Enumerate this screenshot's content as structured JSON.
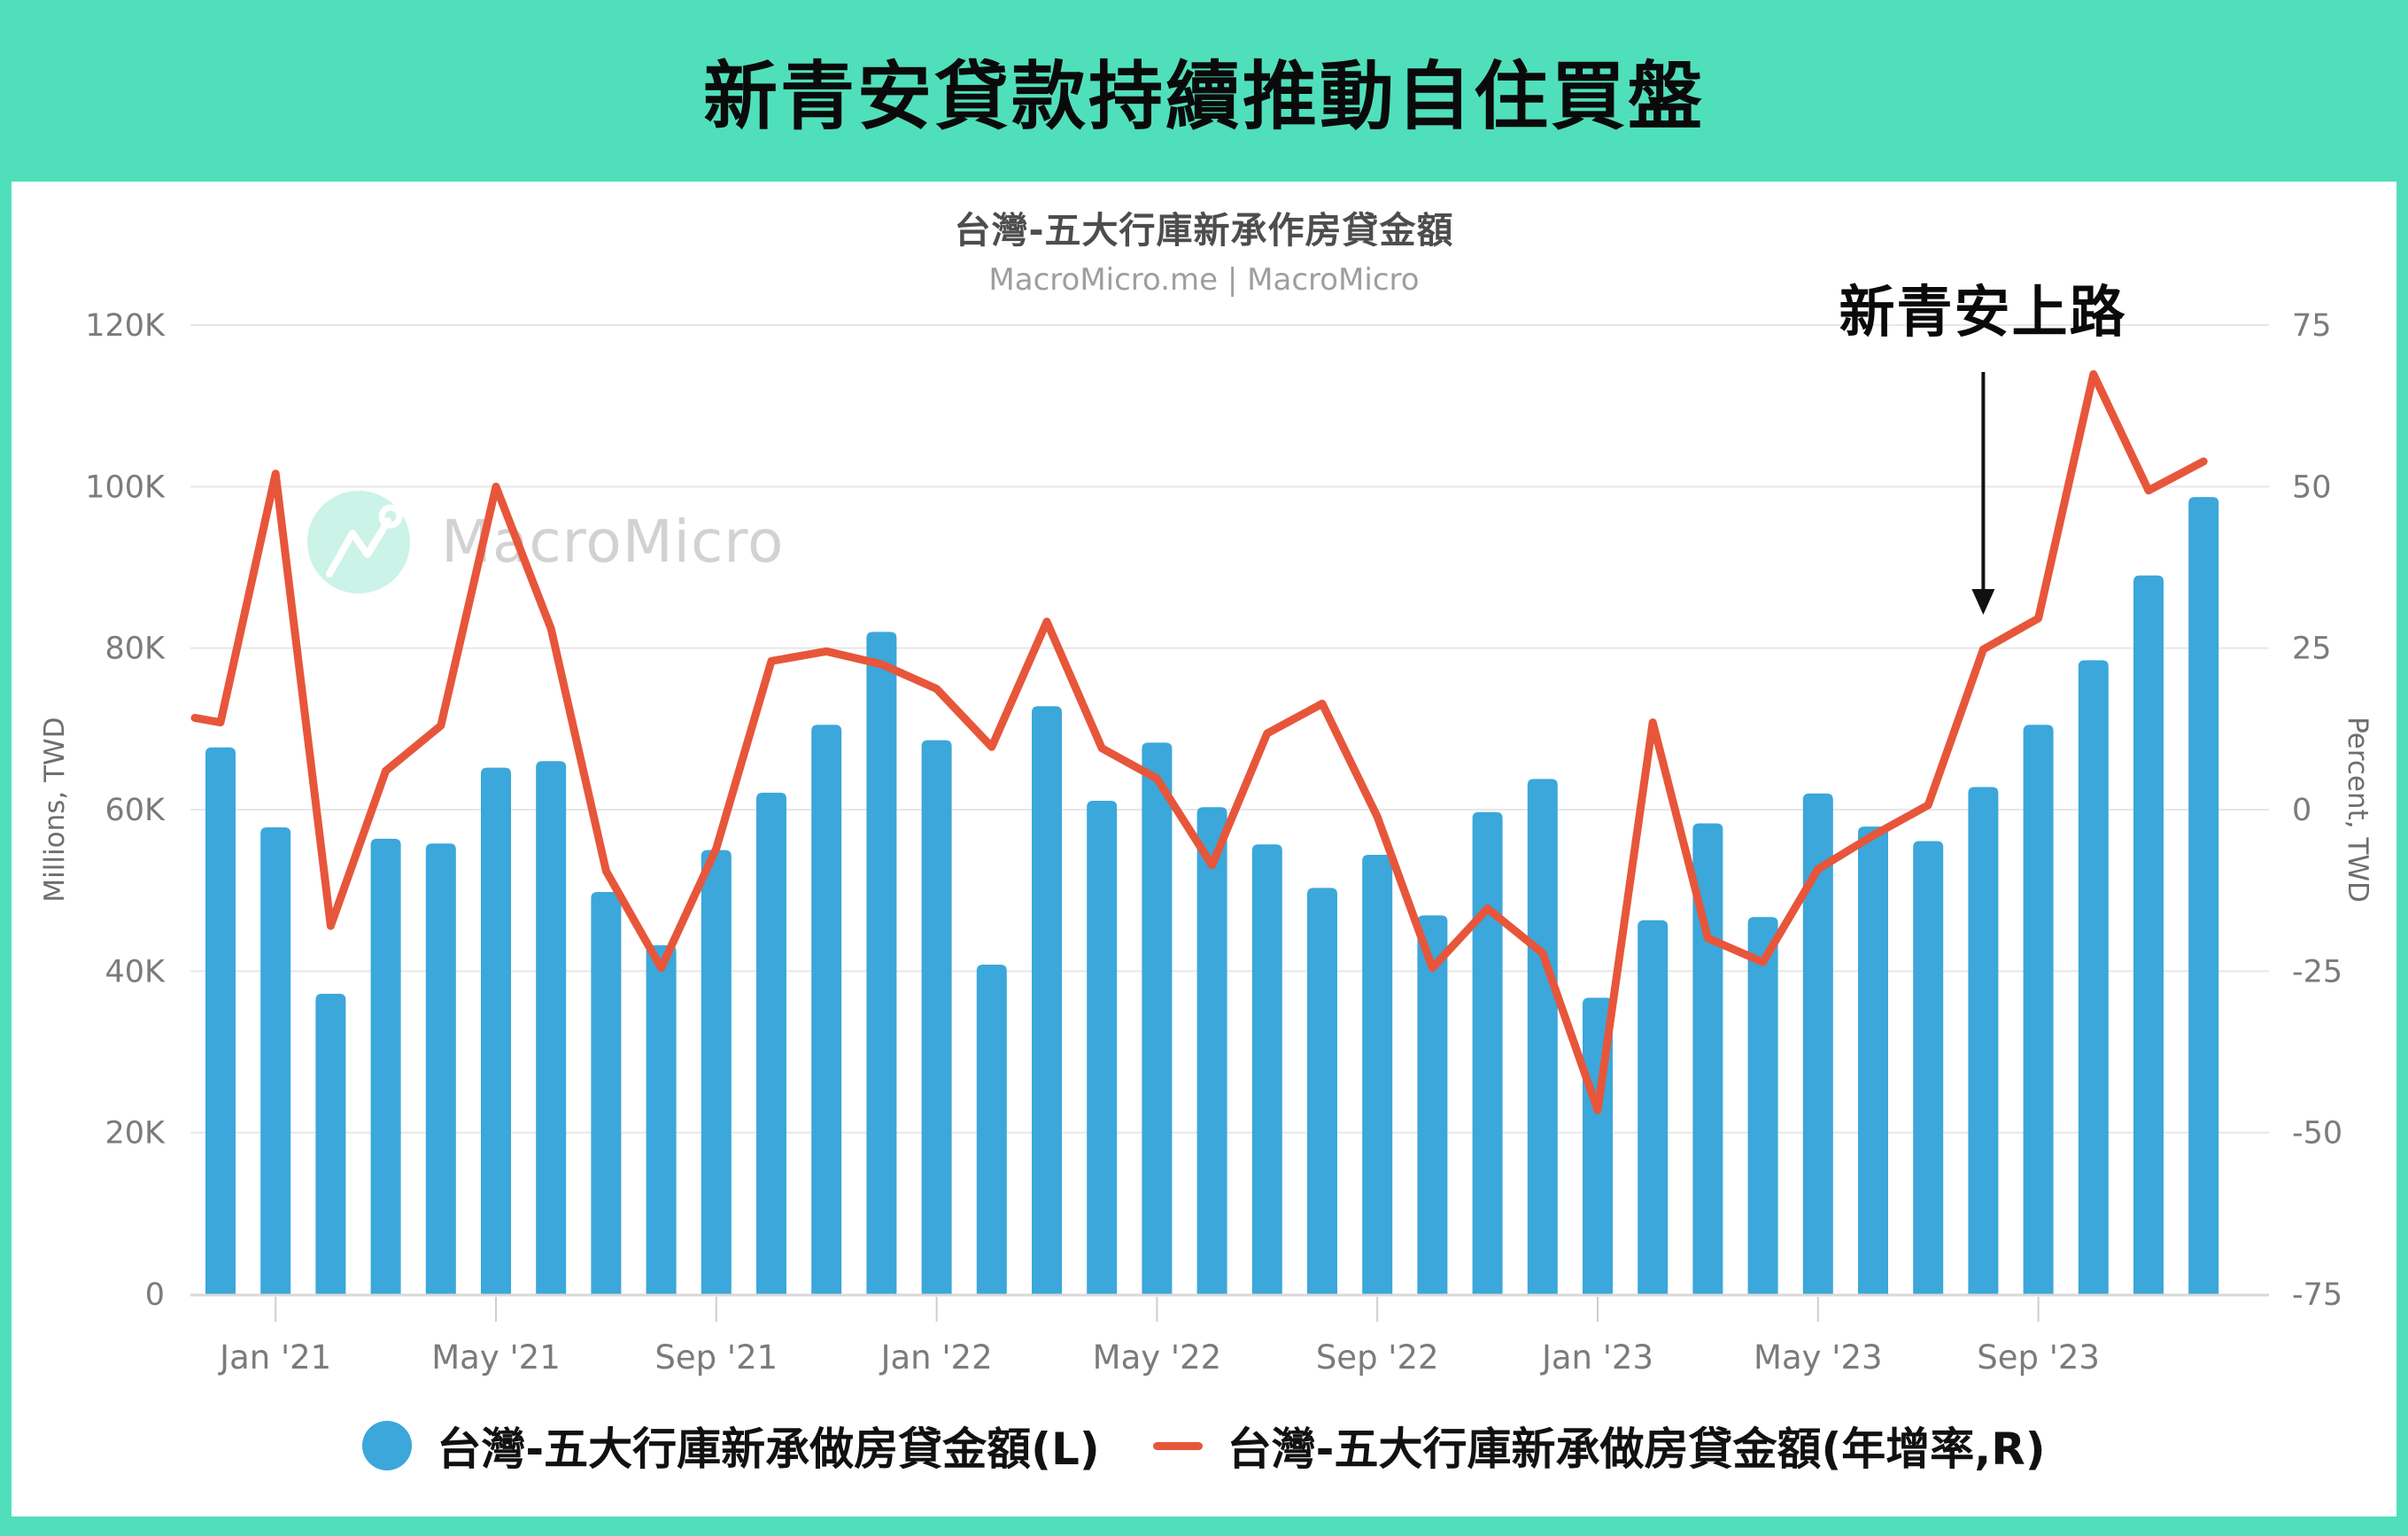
{
  "header": {
    "title": "新青安貸款持續推動自住買盤",
    "accent_color": "#50DFBB"
  },
  "watermark": {
    "text": "MacroMicro",
    "icon": "macromicro-line-chart-logo"
  },
  "chart_data": {
    "type": "bar+line",
    "title": "台灣-五大行庫新承作房貸金額",
    "subtitle": "MacroMicro.me | MacroMicro",
    "left_axis_title": "Millions, TWD",
    "right_axis_title": "Percent, TWD",
    "left_ticks": [
      "120K",
      "100K",
      "80K",
      "60K",
      "40K",
      "20K",
      "0"
    ],
    "right_ticks": [
      "75",
      "50",
      "25",
      "0",
      "-25",
      "-50",
      "-75"
    ],
    "left_ylim": [
      0,
      120000
    ],
    "right_ylim": [
      -75,
      75
    ],
    "grid": "horizontal",
    "legend_position": "bottom",
    "x": [
      "Dec '20",
      "Jan '21",
      "Feb '21",
      "Mar '21",
      "Apr '21",
      "May '21",
      "Jun '21",
      "Jul '21",
      "Aug '21",
      "Sep '21",
      "Oct '21",
      "Nov '21",
      "Dec '21",
      "Jan '22",
      "Feb '22",
      "Mar '22",
      "Apr '22",
      "May '22",
      "Jun '22",
      "Jul '22",
      "Aug '22",
      "Sep '22",
      "Oct '22",
      "Nov '22",
      "Dec '22",
      "Jan '23",
      "Feb '23",
      "Mar '23",
      "Apr '23",
      "May '23",
      "Jun '23",
      "Jul '23",
      "Aug '23",
      "Sep '23",
      "Oct '23",
      "Nov '23",
      "Dec '23"
    ],
    "x_ticks": [
      {
        "label": "Jan '21",
        "i": 1
      },
      {
        "label": "May '21",
        "i": 5
      },
      {
        "label": "Sep '21",
        "i": 9
      },
      {
        "label": "Jan '22",
        "i": 13
      },
      {
        "label": "May '22",
        "i": 17
      },
      {
        "label": "Sep '22",
        "i": 21
      },
      {
        "label": "Jan '23",
        "i": 25
      },
      {
        "label": "May '23",
        "i": 29
      },
      {
        "label": "Sep '23",
        "i": 33
      }
    ],
    "annotation": {
      "text": "新青安上路",
      "points_to": "Aug '23"
    },
    "series": [
      {
        "name": "台灣-五大行庫新承做房貸金額(L)",
        "type": "bar",
        "axis": "left",
        "unit": "Millions, TWD",
        "color": "#3BA7DA",
        "values": [
          67700,
          57800,
          37200,
          56400,
          55800,
          65200,
          66000,
          49800,
          43200,
          55000,
          62100,
          70500,
          82000,
          68600,
          40800,
          72800,
          61100,
          68300,
          60300,
          55700,
          50300,
          54400,
          46900,
          59700,
          63800,
          36700,
          46300,
          58300,
          46700,
          62000,
          57900,
          56100,
          62800,
          70500,
          78500,
          89000,
          98700
        ]
      },
      {
        "name": "台灣-五大行庫新承做房貸金額(年增率,R)",
        "type": "line",
        "axis": "right",
        "unit": "percent",
        "color": "#E7563A",
        "edge_lead_pct": 14.2,
        "values": [
          13.5,
          52,
          -18,
          6,
          13,
          50,
          28,
          -9.5,
          -24.5,
          -6,
          23,
          24.5,
          22.5,
          18.7,
          9.7,
          29.1,
          9.5,
          4.8,
          -8.6,
          11.8,
          16.4,
          -1.1,
          -24.5,
          -15.3,
          -22.2,
          -46.5,
          13.5,
          -19.9,
          -23.6,
          -9.2,
          -4,
          0.7,
          24.8,
          29.6,
          67.4,
          49.4,
          53.9
        ]
      }
    ]
  }
}
